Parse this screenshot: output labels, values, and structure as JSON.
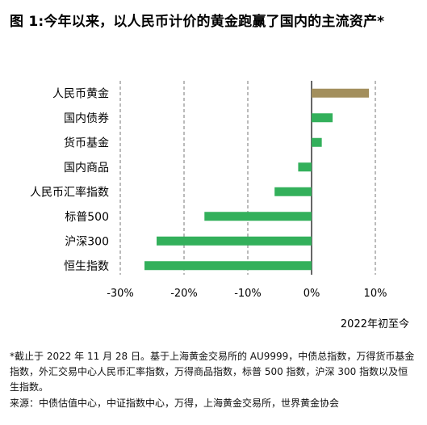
{
  "title": "图 1:今年以来，以人民币计价的黄金跑赢了国内的主流资产*",
  "period_label": "2022年初至今",
  "footnote": "*截止于 2022 年 11 月 28 日。基于上海黄金交易所的 AU9999，中债总指数，万得货币基金指数，外汇交易中心人民币汇率指数，万得商品指数，标普 500 指数，沪深 300 指数以及恒生指数。",
  "source": "来源：中债估值中心，中证指数中心，万得，上海黄金交易所，世界黄金协会",
  "colors": {
    "gold": "#A38F5D",
    "green": "#33B05B",
    "grid": "#777777",
    "axis": "#000000"
  },
  "chart_data": {
    "type": "bar",
    "orientation": "horizontal",
    "categories": [
      "人民币黄金",
      "国内债券",
      "货币基金",
      "国内商品",
      "人民币汇率指数",
      "标普500",
      "沪深300",
      "恒生指数"
    ],
    "values": [
      9.0,
      3.3,
      1.6,
      -2.1,
      -5.8,
      -16.8,
      -24.3,
      -26.2
    ],
    "bar_colors": [
      "gold",
      "green",
      "green",
      "green",
      "green",
      "green",
      "green",
      "green"
    ],
    "xlim": [
      -30,
      10
    ],
    "xticks": [
      -30,
      -20,
      -10,
      0,
      10
    ],
    "xtick_labels": [
      "-30%",
      "-20%",
      "-10%",
      "0%",
      "10%"
    ],
    "grid": "vertical dashed"
  }
}
